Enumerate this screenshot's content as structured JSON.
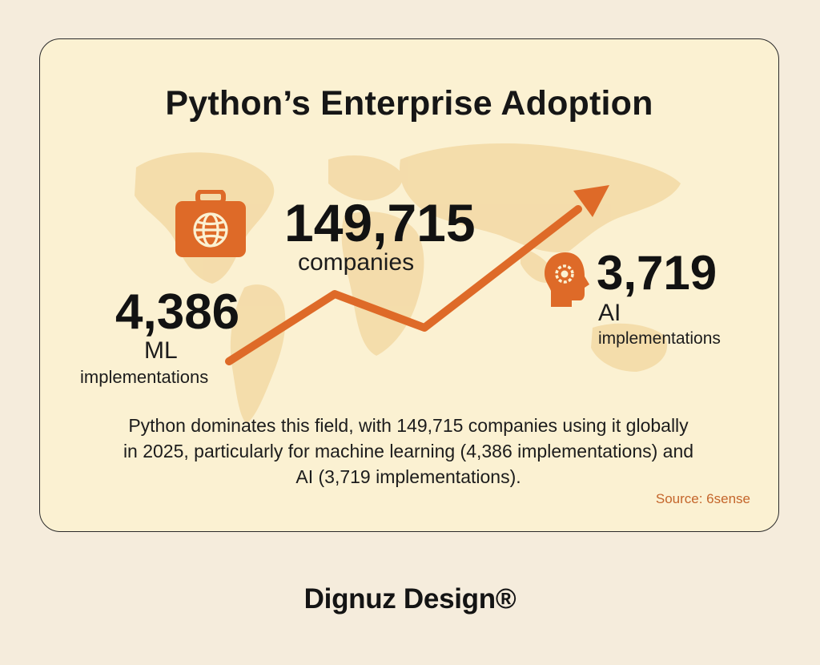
{
  "card": {
    "title": "Python’s Enterprise Adoption",
    "stat_companies": {
      "value": "149,715",
      "label": "companies"
    },
    "stat_ml": {
      "value": "4,386",
      "label_top": "ML",
      "label_bottom": "implementations"
    },
    "stat_ai": {
      "value": "3,719",
      "label_top": "AI",
      "label_bottom": "implementations"
    },
    "description": "Python dominates this field, with 149,715 companies using it globally in 2025, particularly for machine learning (4,386 implementations) and AI (3,719 implementations).",
    "source": "Source: 6sense"
  },
  "footer": {
    "brand": "Dignuz Design®"
  },
  "icons": [
    "briefcase-globe-icon",
    "head-gear-icon",
    "trend-arrow-icon",
    "world-map"
  ],
  "colors": {
    "accent": "#de6a28",
    "card_bg": "#fbf1d2",
    "page_bg": "#f5ecdc",
    "text": "#161616",
    "map": "#f2d69e"
  }
}
